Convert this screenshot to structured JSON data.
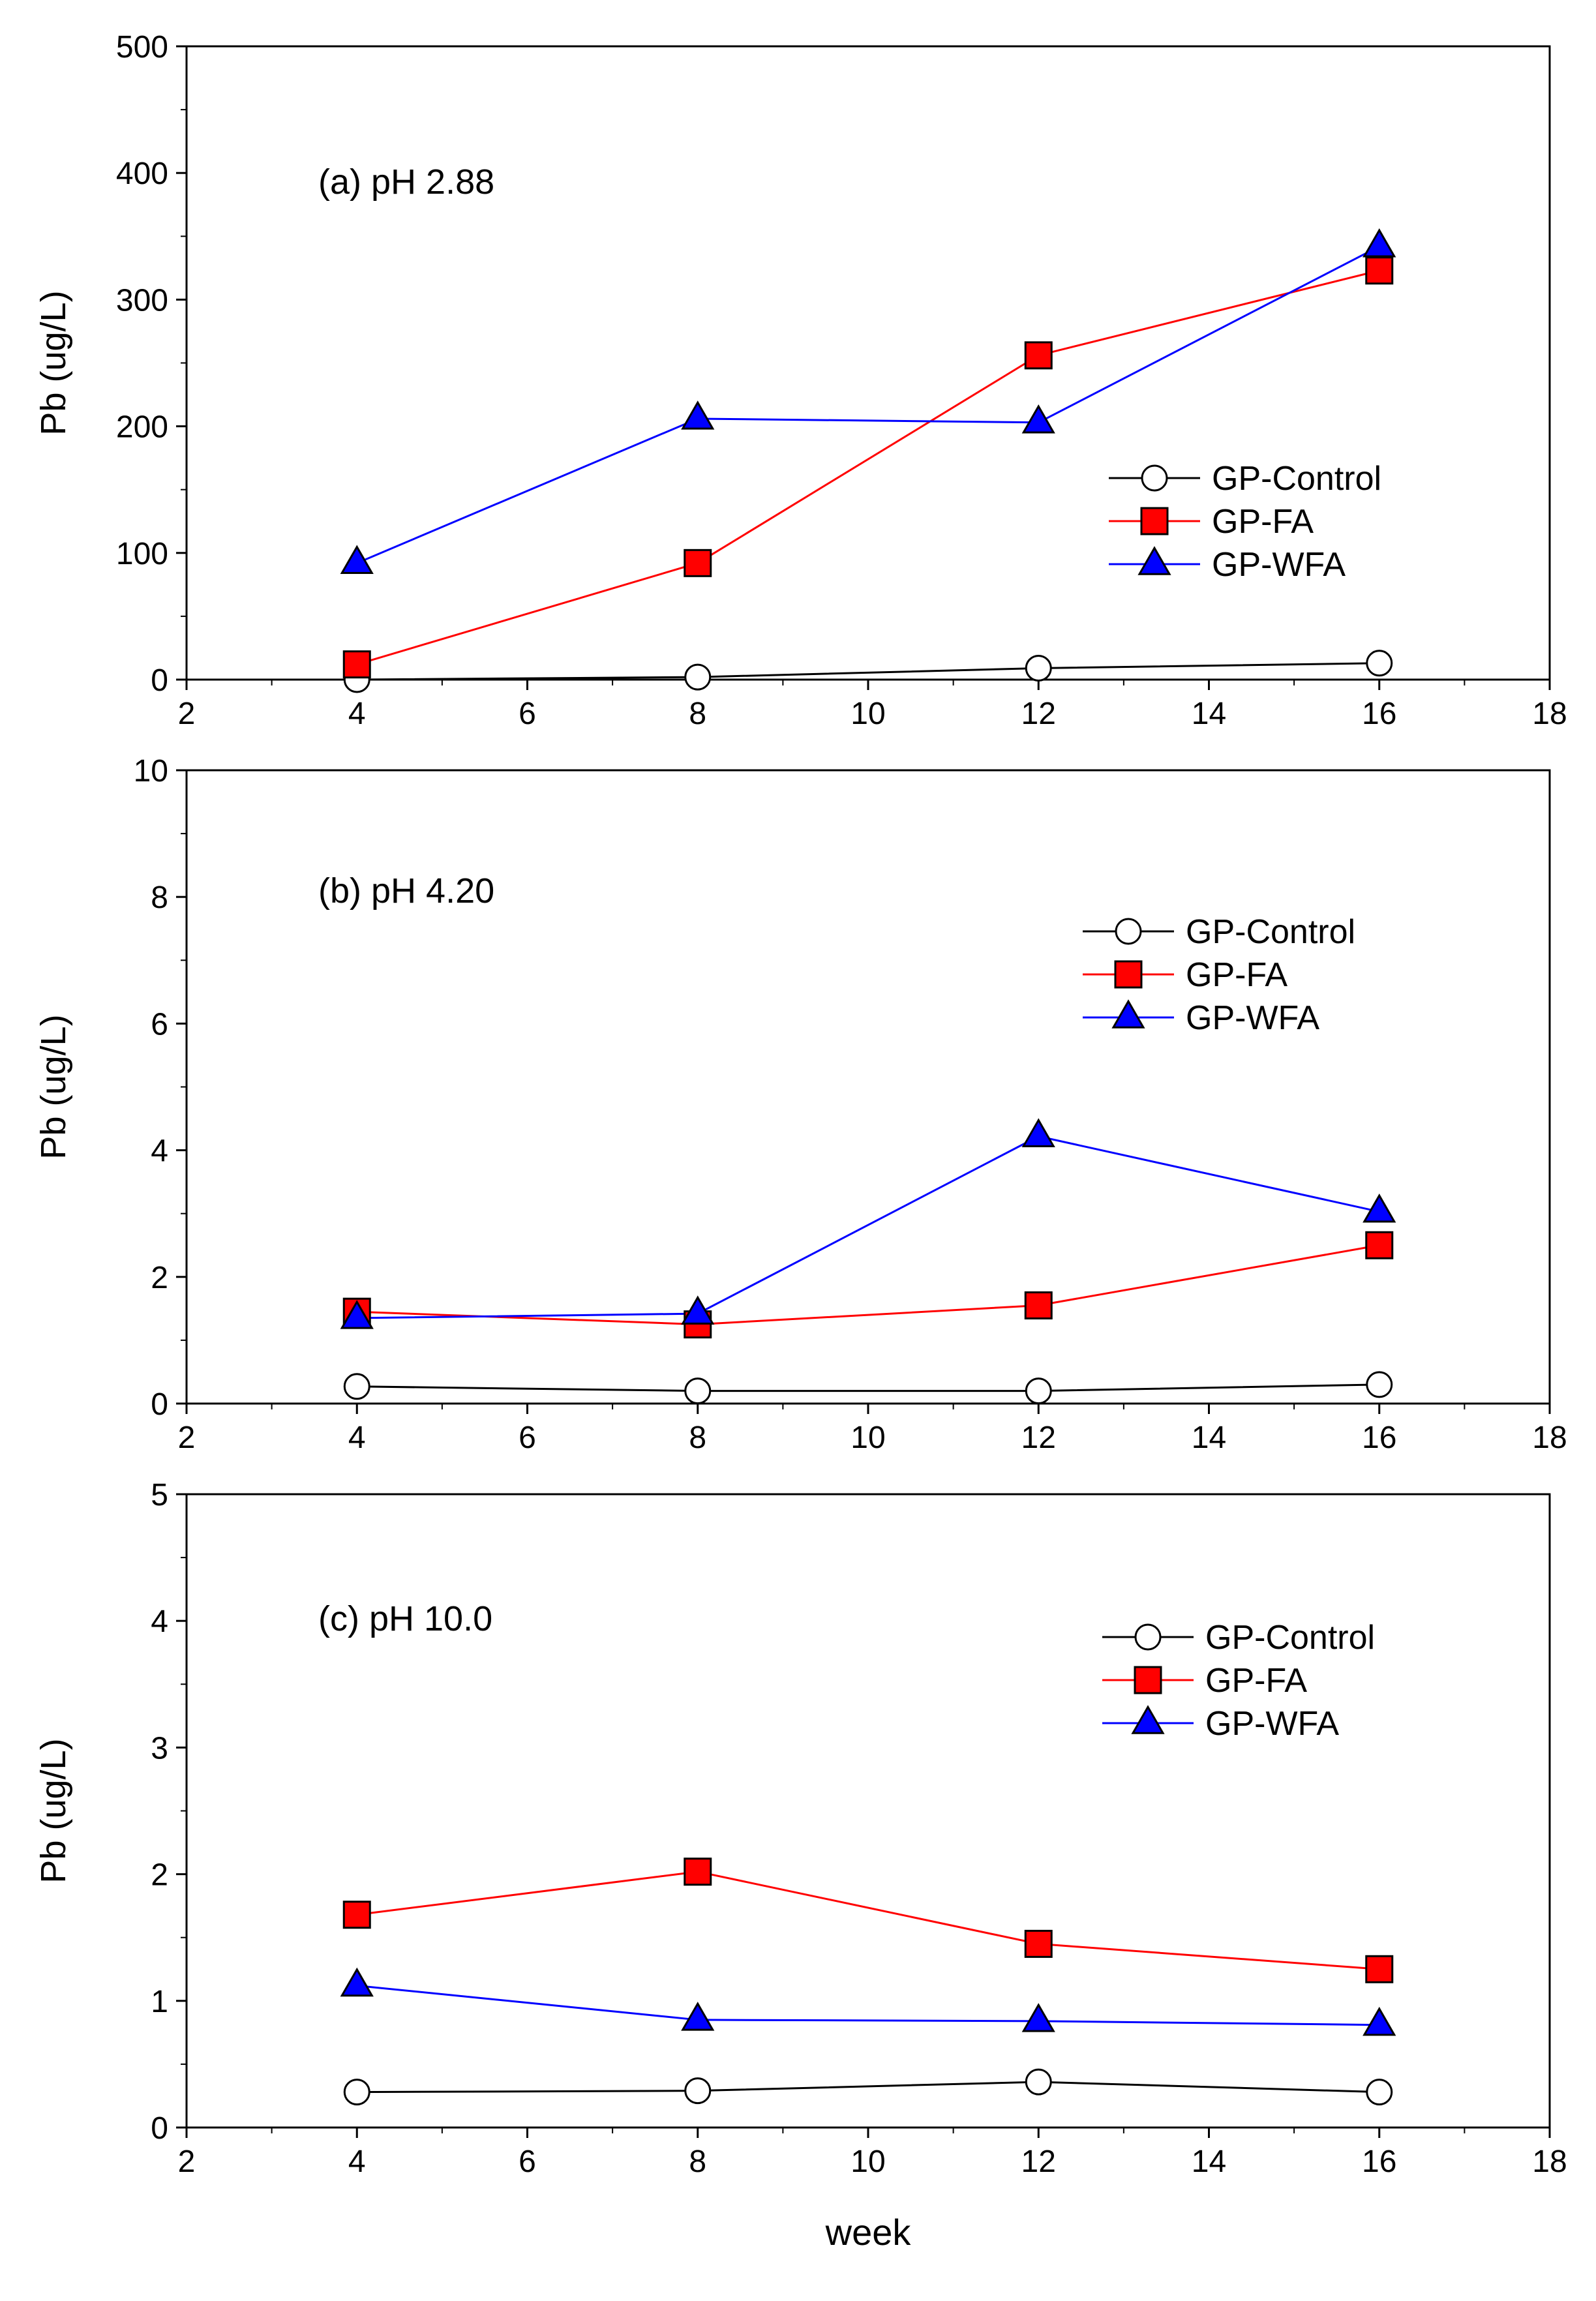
{
  "chart_data": [
    {
      "type": "line",
      "annotation": "(a) pH 2.88",
      "xlabel": "",
      "ylabel": "Pb (ug/L)",
      "xlim": [
        2,
        18
      ],
      "ylim": [
        0,
        500
      ],
      "xticks": [
        "2",
        "4",
        "6",
        "8",
        "10",
        "12",
        "14",
        "16",
        "18"
      ],
      "yticks": [
        "0",
        "100",
        "200",
        "300",
        "400",
        "500"
      ],
      "legend_position": "right-middle",
      "x": [
        4,
        8,
        12,
        16
      ],
      "series": [
        {
          "name": "GP-Control",
          "marker": "circle",
          "color": "#000000",
          "fill": "#ffffff",
          "values": [
            0,
            2,
            9,
            13
          ]
        },
        {
          "name": "GP-FA",
          "marker": "square",
          "color": "#ff0000",
          "fill": "#ff0000",
          "values": [
            12,
            92,
            256,
            323
          ]
        },
        {
          "name": "GP-WFA",
          "marker": "triangle",
          "color": "#0000ff",
          "fill": "#0000ff",
          "values": [
            92,
            206,
            203,
            342
          ]
        }
      ]
    },
    {
      "type": "line",
      "annotation": "(b) pH 4.20",
      "xlabel": "",
      "ylabel": "Pb (ug/L)",
      "xlim": [
        2,
        18
      ],
      "ylim": [
        0,
        10
      ],
      "xticks": [
        "2",
        "4",
        "6",
        "8",
        "10",
        "12",
        "14",
        "16",
        "18"
      ],
      "yticks": [
        "0",
        "2",
        "4",
        "6",
        "8",
        "10"
      ],
      "legend_position": "top-right",
      "x": [
        4,
        8,
        12,
        16
      ],
      "series": [
        {
          "name": "GP-Control",
          "marker": "circle",
          "color": "#000000",
          "fill": "#ffffff",
          "values": [
            0.27,
            0.2,
            0.2,
            0.3
          ]
        },
        {
          "name": "GP-FA",
          "marker": "square",
          "color": "#ff0000",
          "fill": "#ff0000",
          "values": [
            1.45,
            1.25,
            1.55,
            2.5
          ]
        },
        {
          "name": "GP-WFA",
          "marker": "triangle",
          "color": "#0000ff",
          "fill": "#0000ff",
          "values": [
            1.35,
            1.42,
            4.22,
            3.03
          ]
        }
      ]
    },
    {
      "type": "line",
      "annotation": "(c) pH 10.0",
      "xlabel": "week",
      "ylabel": "Pb (ug/L)",
      "xlim": [
        2,
        18
      ],
      "ylim": [
        0,
        5
      ],
      "xticks": [
        "2",
        "4",
        "6",
        "8",
        "10",
        "12",
        "14",
        "16",
        "18"
      ],
      "yticks": [
        "0",
        "1",
        "2",
        "3",
        "4",
        "5"
      ],
      "legend_position": "top-right",
      "x": [
        4,
        8,
        12,
        16
      ],
      "series": [
        {
          "name": "GP-Control",
          "marker": "circle",
          "color": "#000000",
          "fill": "#ffffff",
          "values": [
            0.28,
            0.29,
            0.36,
            0.28
          ]
        },
        {
          "name": "GP-FA",
          "marker": "square",
          "color": "#ff0000",
          "fill": "#ff0000",
          "values": [
            1.68,
            2.02,
            1.45,
            1.25
          ]
        },
        {
          "name": "GP-WFA",
          "marker": "triangle",
          "color": "#0000ff",
          "fill": "#0000ff",
          "values": [
            1.12,
            0.85,
            0.84,
            0.81
          ]
        }
      ]
    }
  ]
}
